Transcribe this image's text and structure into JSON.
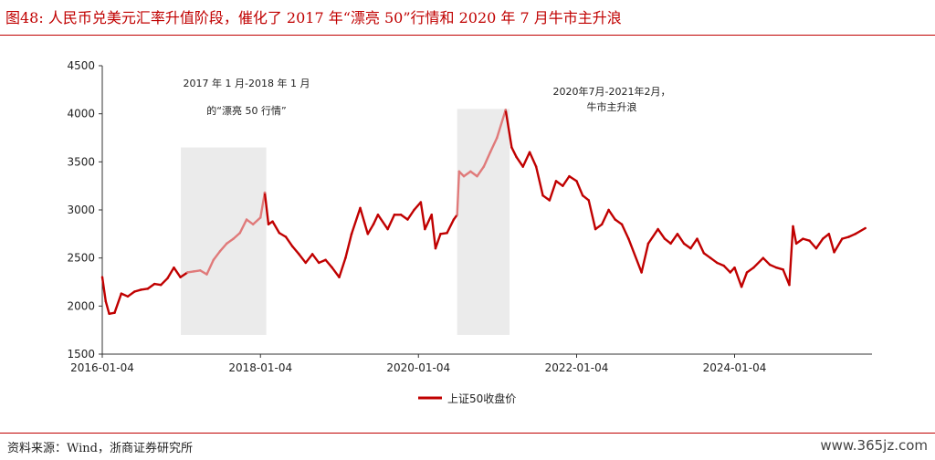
{
  "title": "图48:  人民币兑美元汇率升值阶段，催化了 2017 年“漂亮 50”行情和 2020 年 7 月牛市主升浪",
  "source": "资料来源：Wind，浙商证券研究所",
  "watermark": "www.365jz.com",
  "chart_data": {
    "type": "line",
    "title": "",
    "xlabel": "",
    "ylabel": "",
    "ylim": [
      1500,
      4500
    ],
    "yticks": [
      1500,
      2000,
      2500,
      3000,
      3500,
      4000,
      4500
    ],
    "xlim": [
      "2016-01-04",
      "2025-09-30"
    ],
    "xticks": [
      "2016-01-04",
      "2018-01-04",
      "2020-01-04",
      "2022-01-04",
      "2024-01-04"
    ],
    "grid": false,
    "legend_position": "bottom",
    "colors": {
      "series": "#c00000",
      "highlight": "#e07a7a",
      "shade": "#ebebeb"
    },
    "series": [
      {
        "name": "上证50收盘价",
        "points": [
          [
            "2016-01-04",
            2300
          ],
          [
            "2016-01-20",
            2050
          ],
          [
            "2016-02-05",
            1920
          ],
          [
            "2016-03-01",
            1930
          ],
          [
            "2016-04-01",
            2130
          ],
          [
            "2016-05-01",
            2100
          ],
          [
            "2016-06-01",
            2150
          ],
          [
            "2016-07-01",
            2170
          ],
          [
            "2016-08-01",
            2180
          ],
          [
            "2016-09-01",
            2230
          ],
          [
            "2016-10-01",
            2220
          ],
          [
            "2016-11-01",
            2290
          ],
          [
            "2016-11-30",
            2400
          ],
          [
            "2016-12-30",
            2300
          ],
          [
            "2017-02-01",
            2350
          ],
          [
            "2017-03-01",
            2360
          ],
          [
            "2017-04-01",
            2370
          ],
          [
            "2017-05-01",
            2330
          ],
          [
            "2017-06-01",
            2480
          ],
          [
            "2017-07-01",
            2570
          ],
          [
            "2017-08-01",
            2650
          ],
          [
            "2017-09-01",
            2700
          ],
          [
            "2017-10-01",
            2760
          ],
          [
            "2017-11-01",
            2900
          ],
          [
            "2017-12-01",
            2850
          ],
          [
            "2018-01-04",
            2920
          ],
          [
            "2018-01-24",
            3180
          ],
          [
            "2018-02-10",
            2850
          ],
          [
            "2018-03-01",
            2880
          ],
          [
            "2018-04-01",
            2760
          ],
          [
            "2018-05-01",
            2720
          ],
          [
            "2018-06-01",
            2620
          ],
          [
            "2018-07-01",
            2540
          ],
          [
            "2018-08-01",
            2450
          ],
          [
            "2018-09-01",
            2540
          ],
          [
            "2018-10-01",
            2450
          ],
          [
            "2018-11-01",
            2480
          ],
          [
            "2018-12-01",
            2400
          ],
          [
            "2019-01-03",
            2300
          ],
          [
            "2019-02-01",
            2500
          ],
          [
            "2019-03-01",
            2750
          ],
          [
            "2019-04-10",
            3020
          ],
          [
            "2019-05-15",
            2750
          ],
          [
            "2019-06-10",
            2850
          ],
          [
            "2019-07-01",
            2950
          ],
          [
            "2019-08-15",
            2800
          ],
          [
            "2019-09-15",
            2950
          ],
          [
            "2019-10-15",
            2950
          ],
          [
            "2019-11-15",
            2900
          ],
          [
            "2019-12-15",
            3000
          ],
          [
            "2020-01-15",
            3080
          ],
          [
            "2020-02-03",
            2800
          ],
          [
            "2020-03-05",
            2950
          ],
          [
            "2020-03-23",
            2600
          ],
          [
            "2020-04-15",
            2750
          ],
          [
            "2020-05-15",
            2760
          ],
          [
            "2020-06-15",
            2900
          ],
          [
            "2020-07-01",
            2950
          ],
          [
            "2020-07-10",
            3400
          ],
          [
            "2020-08-01",
            3350
          ],
          [
            "2020-09-01",
            3400
          ],
          [
            "2020-10-01",
            3350
          ],
          [
            "2020-11-01",
            3450
          ],
          [
            "2020-12-01",
            3600
          ],
          [
            "2021-01-01",
            3750
          ],
          [
            "2021-02-10",
            4040
          ],
          [
            "2021-03-10",
            3650
          ],
          [
            "2021-04-01",
            3550
          ],
          [
            "2021-05-01",
            3450
          ],
          [
            "2021-06-01",
            3600
          ],
          [
            "2021-07-01",
            3450
          ],
          [
            "2021-08-01",
            3150
          ],
          [
            "2021-09-01",
            3100
          ],
          [
            "2021-10-01",
            3300
          ],
          [
            "2021-11-01",
            3250
          ],
          [
            "2021-12-01",
            3350
          ],
          [
            "2022-01-04",
            3300
          ],
          [
            "2022-02-01",
            3150
          ],
          [
            "2022-03-01",
            3100
          ],
          [
            "2022-04-01",
            2800
          ],
          [
            "2022-05-01",
            2850
          ],
          [
            "2022-06-01",
            3000
          ],
          [
            "2022-07-01",
            2900
          ],
          [
            "2022-08-01",
            2850
          ],
          [
            "2022-09-01",
            2700
          ],
          [
            "2022-10-31",
            2350
          ],
          [
            "2022-12-01",
            2650
          ],
          [
            "2023-01-15",
            2800
          ],
          [
            "2023-02-15",
            2700
          ],
          [
            "2023-03-15",
            2650
          ],
          [
            "2023-04-15",
            2750
          ],
          [
            "2023-05-15",
            2650
          ],
          [
            "2023-06-15",
            2600
          ],
          [
            "2023-07-15",
            2700
          ],
          [
            "2023-08-15",
            2550
          ],
          [
            "2023-09-15",
            2500
          ],
          [
            "2023-10-15",
            2450
          ],
          [
            "2023-11-15",
            2420
          ],
          [
            "2023-12-15",
            2350
          ],
          [
            "2024-01-04",
            2400
          ],
          [
            "2024-02-05",
            2200
          ],
          [
            "2024-03-01",
            2350
          ],
          [
            "2024-04-01",
            2400
          ],
          [
            "2024-05-15",
            2500
          ],
          [
            "2024-06-15",
            2430
          ],
          [
            "2024-07-15",
            2400
          ],
          [
            "2024-08-15",
            2380
          ],
          [
            "2024-09-13",
            2220
          ],
          [
            "2024-09-30",
            2830
          ],
          [
            "2024-10-15",
            2650
          ],
          [
            "2024-11-15",
            2700
          ],
          [
            "2024-12-15",
            2680
          ],
          [
            "2025-01-15",
            2600
          ],
          [
            "2025-02-15",
            2700
          ],
          [
            "2025-03-15",
            2750
          ],
          [
            "2025-04-08",
            2560
          ],
          [
            "2025-05-15",
            2700
          ],
          [
            "2025-06-15",
            2720
          ],
          [
            "2025-07-15",
            2750
          ],
          [
            "2025-08-30",
            2810
          ]
        ]
      }
    ],
    "shaded_periods": [
      {
        "start": "2017-01-01",
        "end": "2018-01-31",
        "y_range": [
          1700,
          3650
        ]
      },
      {
        "start": "2020-07-01",
        "end": "2021-02-28",
        "y_range": [
          1700,
          4050
        ]
      }
    ],
    "annotations": [
      {
        "lines": [
          "2017 年 1 月-2018 年 1 月",
          "的“漂亮 50 行情”"
        ]
      },
      {
        "lines": [
          "2020年7月-2021年2月，",
          "牛市主升浪"
        ]
      }
    ]
  }
}
